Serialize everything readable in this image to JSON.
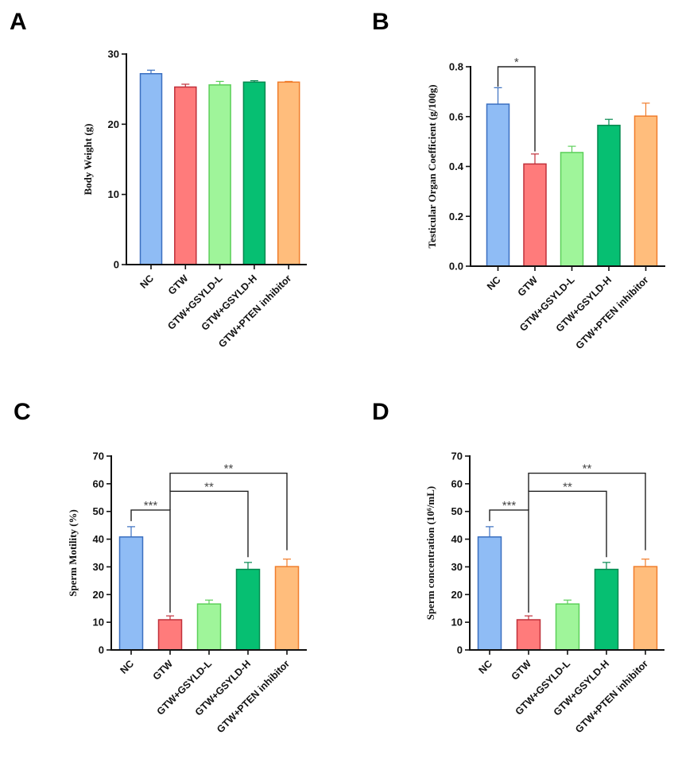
{
  "figure": {
    "colors": {
      "NC": {
        "fill": "#8fbcf5",
        "stroke": "#3a6fc0"
      },
      "GTW": {
        "fill": "#ff7b7b",
        "stroke": "#c0303a"
      },
      "GTW+GSYLD-L": {
        "fill": "#9ff59a",
        "stroke": "#5ccf5a"
      },
      "GTW+GSYLD-H": {
        "fill": "#06bf72",
        "stroke": "#04894f"
      },
      "GTW+PTEN inhibitor": {
        "fill": "#ffbd7c",
        "stroke": "#f07d2c"
      }
    }
  },
  "chart_data": [
    {
      "panel": "A",
      "type": "bar",
      "title": "",
      "xlabel": "",
      "ylabel": "Body Weight (g)",
      "categories": [
        "NC",
        "GTW",
        "GTW+GSYLD-L",
        "GTW+GSYLD-H",
        "GTW+PTEN inhibitor"
      ],
      "values": [
        27.2,
        25.3,
        25.6,
        26.0,
        26.0
      ],
      "errors": [
        0.5,
        0.4,
        0.5,
        0.2,
        0.1
      ],
      "ylim": [
        0,
        30
      ],
      "yticks": [
        0,
        10,
        20,
        30
      ],
      "ytick_labels": [
        "0",
        "10",
        "20",
        "30"
      ],
      "grid": false,
      "significance": []
    },
    {
      "panel": "B",
      "type": "bar",
      "title": "",
      "xlabel": "",
      "ylabel": "Testicular Organ Coefficient (g/100g)",
      "categories": [
        "NC",
        "GTW",
        "GTW+GSYLD-L",
        "GTW+GSYLD-H",
        "GTW+PTEN inhibitor"
      ],
      "values": [
        0.65,
        0.41,
        0.456,
        0.565,
        0.602
      ],
      "errors": [
        0.066,
        0.04,
        0.025,
        0.024,
        0.052
      ],
      "ylim": [
        0,
        0.8
      ],
      "yticks": [
        0,
        0.2,
        0.4,
        0.6,
        0.8
      ],
      "ytick_labels": [
        "0.0",
        "0.2",
        "0.4",
        "0.6",
        "0.8"
      ],
      "grid": false,
      "significance": [
        {
          "from": 0,
          "to": 1,
          "level": 0.8,
          "left_end": 0.72,
          "right_end": 0.46,
          "label": "*"
        }
      ]
    },
    {
      "panel": "C",
      "type": "bar",
      "title": "",
      "xlabel": "",
      "ylabel": "Sperm Motility (%)",
      "categories": [
        "NC",
        "GTW",
        "GTW+GSYLD-L",
        "GTW+GSYLD-H",
        "GTW+PTEN inhibitor"
      ],
      "values": [
        40.8,
        10.9,
        16.6,
        29.1,
        30.1
      ],
      "errors": [
        3.7,
        1.4,
        1.4,
        2.5,
        2.7
      ],
      "ylim": [
        0,
        70
      ],
      "yticks": [
        0,
        10,
        20,
        30,
        40,
        50,
        60,
        70
      ],
      "ytick_labels": [
        "0",
        "10",
        "20",
        "30",
        "40",
        "50",
        "60",
        "70"
      ],
      "grid": false,
      "significance": [
        {
          "from": 0,
          "to": 1,
          "level": 50.5,
          "left_end": 46.5,
          "right_end": 13.5,
          "label": "***"
        },
        {
          "from": 1,
          "to": 3,
          "level": 57.3,
          "left_end": 50.5,
          "right_end": 33.5,
          "label": "**"
        },
        {
          "from": 1,
          "to": 4,
          "level": 63.8,
          "left_end": 57.3,
          "right_end": 36.0,
          "label": "**"
        }
      ]
    },
    {
      "panel": "D",
      "type": "bar",
      "title": "",
      "xlabel": "",
      "ylabel": "Sperm concentration (10⁶/mL)",
      "categories": [
        "NC",
        "GTW",
        "GTW+GSYLD-L",
        "GTW+GSYLD-H",
        "GTW+PTEN inhibitor"
      ],
      "values": [
        40.8,
        10.9,
        16.6,
        29.1,
        30.1
      ],
      "errors": [
        3.7,
        1.4,
        1.4,
        2.5,
        2.7
      ],
      "ylim": [
        0,
        70
      ],
      "yticks": [
        0,
        10,
        20,
        30,
        40,
        50,
        60,
        70
      ],
      "ytick_labels": [
        "0",
        "10",
        "20",
        "30",
        "40",
        "50",
        "60",
        "70"
      ],
      "grid": false,
      "significance": [
        {
          "from": 0,
          "to": 1,
          "level": 50.5,
          "left_end": 46.5,
          "right_end": 13.5,
          "label": "***"
        },
        {
          "from": 1,
          "to": 3,
          "level": 57.3,
          "left_end": 50.5,
          "right_end": 33.5,
          "label": "**"
        },
        {
          "from": 1,
          "to": 4,
          "level": 63.8,
          "left_end": 57.3,
          "right_end": 36.0,
          "label": "**"
        }
      ]
    }
  ]
}
